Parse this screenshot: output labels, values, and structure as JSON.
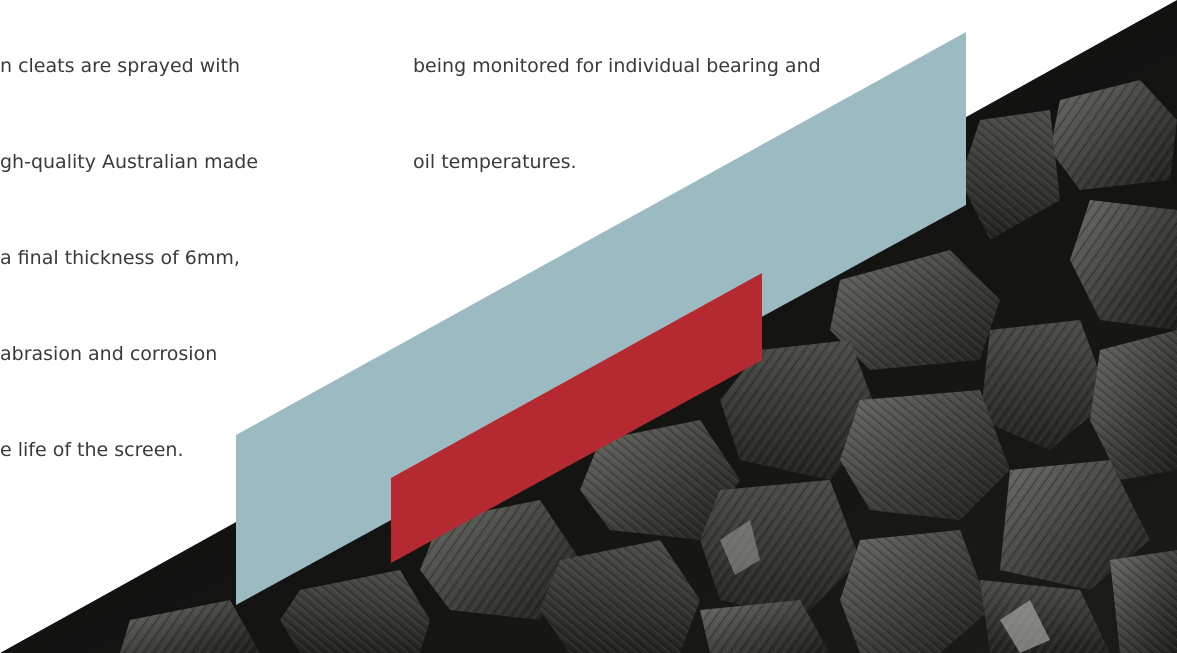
{
  "left_column": {
    "lines": [
      "n cleats are sprayed with",
      "gh-quality Australian made",
      "a final thickness of 6mm,",
      "abrasion and corrosion",
      "e life of the screen."
    ]
  },
  "right_column": {
    "lines": [
      "being monitored for individual bearing and",
      "oil temperatures."
    ]
  },
  "colors": {
    "text": "#3a3a3a",
    "light_blue_band": "#9bbac2",
    "red_band": "#b52a31",
    "coal_dark": "#141412"
  }
}
